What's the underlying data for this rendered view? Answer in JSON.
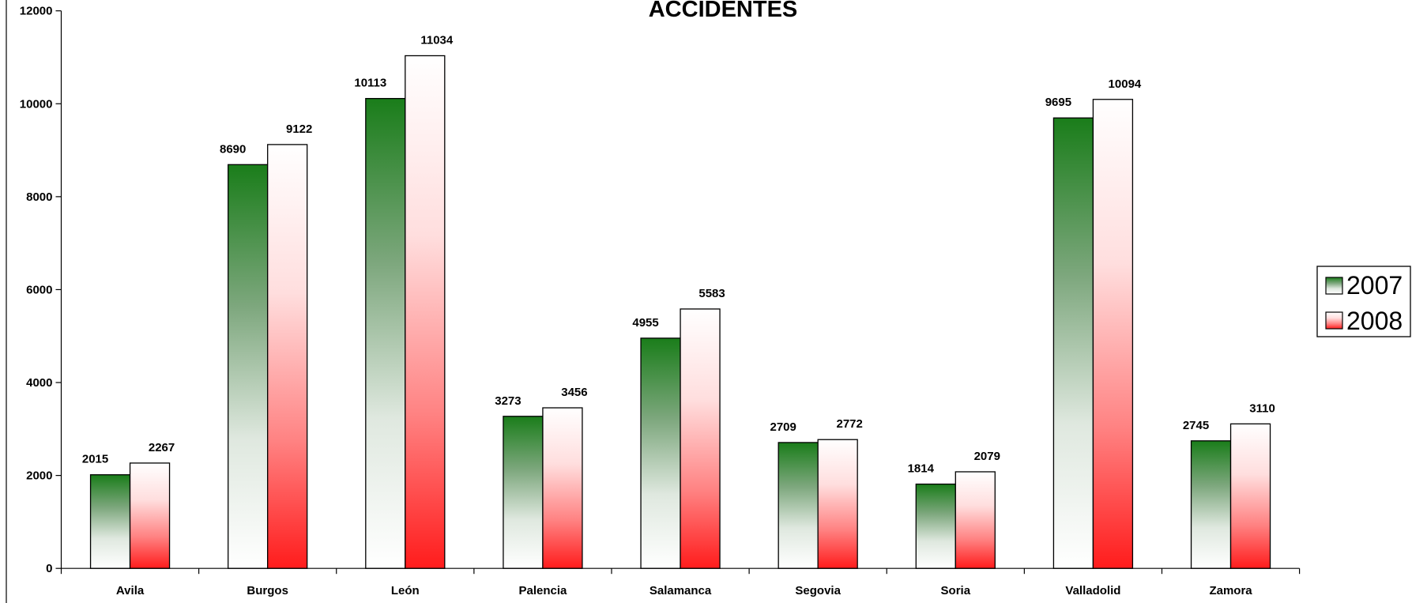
{
  "chart_data": {
    "type": "bar",
    "title": "ACCIDENTES",
    "categories": [
      "Avila",
      "Burgos",
      "León",
      "Palencia",
      "Salamanca",
      "Segovia",
      "Soria",
      "Valladolid",
      "Zamora"
    ],
    "series": [
      {
        "name": "2007",
        "values": [
          2015,
          8690,
          10113,
          3273,
          4955,
          2709,
          1814,
          9695,
          2745
        ],
        "color_top": "#1a7d1a",
        "color_bottom": "#ffffff"
      },
      {
        "name": "2008",
        "values": [
          2267,
          9122,
          11034,
          3456,
          5583,
          2772,
          2079,
          10094,
          3110
        ],
        "color_top": "#ffffff",
        "color_bottom": "#ff1c1c"
      }
    ],
    "ylim": [
      0,
      12000
    ],
    "yticks": [
      0,
      2000,
      4000,
      6000,
      8000,
      10000,
      12000
    ],
    "grid": false,
    "data_labels": true,
    "legend_position": "right"
  }
}
